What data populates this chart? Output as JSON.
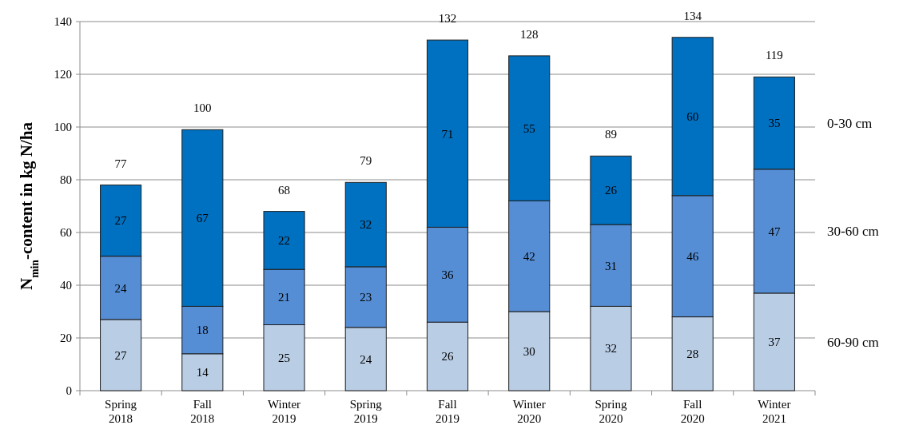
{
  "chart_data": {
    "type": "bar",
    "stacked": true,
    "ylabel": "N$_{min}$-content in kg N/ha",
    "categories": [
      "Spring 2018",
      "Fall 2018",
      "Winter 2019",
      "Spring 2019",
      "Fall 2019",
      "Winter 2020",
      "Spring 2020",
      "Fall 2020",
      "Winter 2021"
    ],
    "series": [
      {
        "name": "60-90 cm",
        "color": "#b9cde5",
        "values": [
          27,
          14,
          25,
          24,
          26,
          30,
          32,
          28,
          37
        ]
      },
      {
        "name": "30-60 cm",
        "color": "#558ed5",
        "values": [
          24,
          18,
          21,
          23,
          36,
          42,
          31,
          46,
          47
        ]
      },
      {
        "name": "0-30 cm",
        "color": "#0070c0",
        "values": [
          27,
          67,
          22,
          32,
          71,
          55,
          26,
          60,
          35
        ]
      }
    ],
    "totals": [
      "77",
      "100",
      "68",
      "79",
      "132",
      "128",
      "89",
      "134",
      "119"
    ],
    "data_labels": true,
    "ylim": [
      0,
      140
    ],
    "yticks": [
      0,
      20,
      40,
      60,
      80,
      100,
      120,
      140
    ],
    "grid": "y",
    "legend": "right"
  }
}
